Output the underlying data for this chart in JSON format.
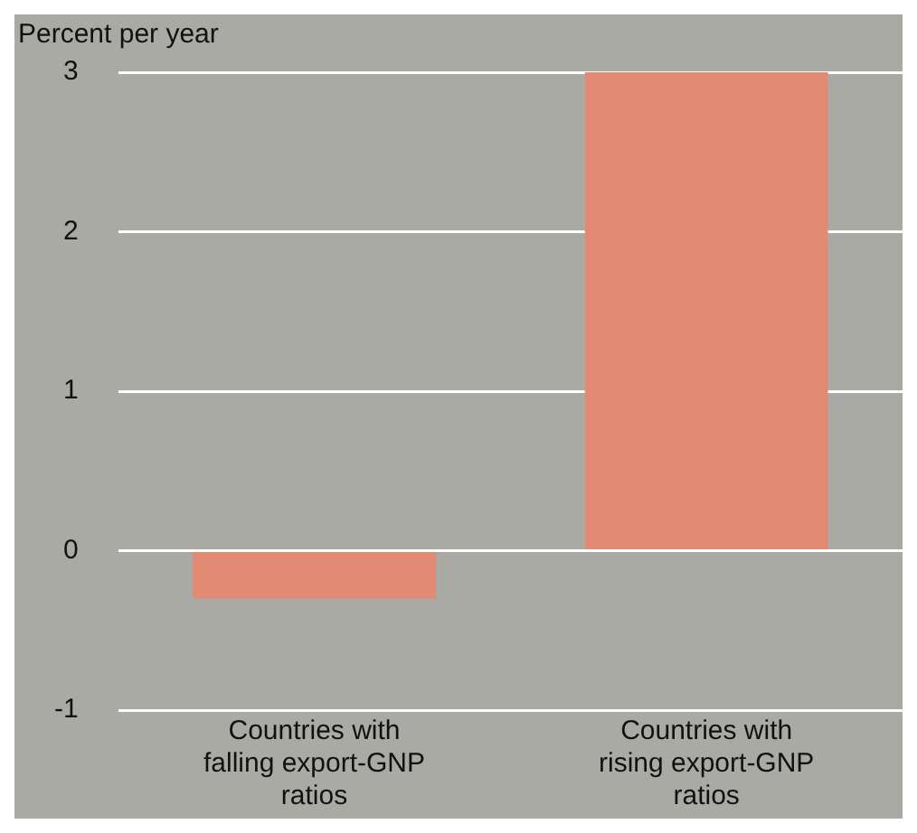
{
  "chart_data": {
    "type": "bar",
    "ylabel": "Percent per year",
    "categories": [
      "Countries with falling export-GNP ratios",
      "Countries with rising export-GNP ratios"
    ],
    "values": [
      -0.3,
      3.0
    ],
    "color": "#e38a74",
    "ylim": [
      -1,
      3
    ],
    "yticks": [
      -1,
      0,
      1,
      2,
      3
    ],
    "grid": "y",
    "legend": false
  }
}
